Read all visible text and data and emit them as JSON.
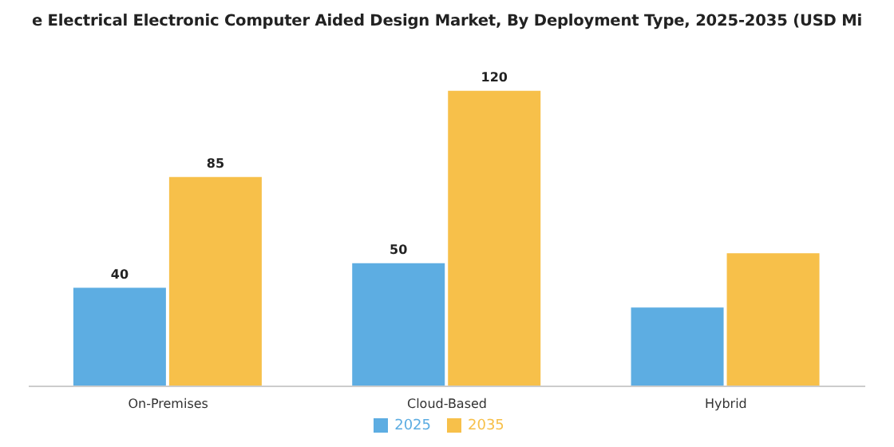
{
  "chart_data": {
    "type": "bar",
    "title": "e Electrical Electronic Computer Aided Design Market, By Deployment Type, 2025-2035 (USD Mi",
    "categories": [
      "On-Premises",
      "Cloud-Based",
      "Hybrid"
    ],
    "series": [
      {
        "name": "2025",
        "color": "#5dade2",
        "values": [
          40,
          50,
          32
        ],
        "value_labels": [
          "40",
          "50",
          null
        ]
      },
      {
        "name": "2035",
        "color": "#f7c04a",
        "values": [
          85,
          120,
          54
        ],
        "value_labels": [
          "85",
          "120",
          null
        ]
      }
    ],
    "legend": "bottom",
    "grid": false
  }
}
